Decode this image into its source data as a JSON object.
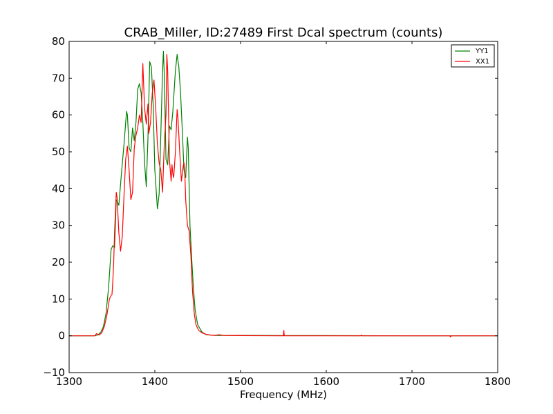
{
  "chart_data": {
    "type": "line",
    "title": "CRAB_Miller, ID:27489 First Dcal spectrum (counts)",
    "xlabel": "Frequency (MHz)",
    "ylabel": "",
    "xlim": [
      1300,
      1800
    ],
    "ylim": [
      -10,
      80
    ],
    "xticks": [
      1300,
      1400,
      1500,
      1600,
      1700,
      1800
    ],
    "yticks": [
      -10,
      0,
      10,
      20,
      30,
      40,
      50,
      60,
      70,
      80
    ],
    "legend_position": "top-right",
    "grid": false,
    "series": [
      {
        "name": "YY1",
        "color": "#008000",
        "points": [
          [
            1300,
            0
          ],
          [
            1320,
            0
          ],
          [
            1330,
            0
          ],
          [
            1334,
            0.3
          ],
          [
            1337,
            1.0
          ],
          [
            1340,
            2.5
          ],
          [
            1343,
            6.0
          ],
          [
            1346,
            13.0
          ],
          [
            1349,
            23.5
          ],
          [
            1351,
            24.5
          ],
          [
            1353,
            24.0
          ],
          [
            1355,
            37.0
          ],
          [
            1358,
            35.5
          ],
          [
            1361,
            44.0
          ],
          [
            1364,
            52.0
          ],
          [
            1367,
            61.0
          ],
          [
            1368,
            60.0
          ],
          [
            1370,
            51.0
          ],
          [
            1372,
            50.0
          ],
          [
            1374,
            56.5
          ],
          [
            1376,
            53.0
          ],
          [
            1378,
            58.0
          ],
          [
            1380,
            67.0
          ],
          [
            1382,
            68.5
          ],
          [
            1384,
            66.0
          ],
          [
            1386,
            58.0
          ],
          [
            1388,
            47.0
          ],
          [
            1390,
            40.5
          ],
          [
            1392,
            54.0
          ],
          [
            1394,
            74.5
          ],
          [
            1396,
            73.0
          ],
          [
            1398,
            63.0
          ],
          [
            1400,
            45.0
          ],
          [
            1403,
            34.5
          ],
          [
            1405,
            38.5
          ],
          [
            1407,
            55.0
          ],
          [
            1409,
            72.0
          ],
          [
            1410,
            77.3
          ],
          [
            1411,
            71.0
          ],
          [
            1413,
            48.0
          ],
          [
            1415,
            46.5
          ],
          [
            1417,
            57.0
          ],
          [
            1419,
            56.0
          ],
          [
            1421,
            61.0
          ],
          [
            1424,
            72.0
          ],
          [
            1426,
            76.5
          ],
          [
            1428,
            73.0
          ],
          [
            1430,
            66.0
          ],
          [
            1432,
            56.0
          ],
          [
            1434,
            45.0
          ],
          [
            1436,
            43.0
          ],
          [
            1438,
            54.0
          ],
          [
            1439,
            51.0
          ],
          [
            1441,
            30.0
          ],
          [
            1443,
            21.0
          ],
          [
            1445,
            13.0
          ],
          [
            1447,
            7.0
          ],
          [
            1450,
            3.0
          ],
          [
            1455,
            1.0
          ],
          [
            1460,
            0.3
          ],
          [
            1470,
            0.1
          ],
          [
            1480,
            0.1
          ],
          [
            1500,
            0.1
          ],
          [
            1550,
            0.05
          ],
          [
            1600,
            0.05
          ],
          [
            1700,
            0
          ],
          [
            1800,
            0
          ]
        ]
      },
      {
        "name": "XX1",
        "color": "#ff0000",
        "points": [
          [
            1300,
            0
          ],
          [
            1325,
            0
          ],
          [
            1330,
            0
          ],
          [
            1332,
            0.6
          ],
          [
            1335,
            0.2
          ],
          [
            1338,
            0.8
          ],
          [
            1341,
            2.5
          ],
          [
            1344,
            5.5
          ],
          [
            1347,
            10.0
          ],
          [
            1349,
            11.0
          ],
          [
            1350,
            11.2
          ],
          [
            1351,
            15.0
          ],
          [
            1352,
            20.0
          ],
          [
            1353,
            28.0
          ],
          [
            1355,
            39.0
          ],
          [
            1356,
            37.5
          ],
          [
            1358,
            28.0
          ],
          [
            1360,
            23.0
          ],
          [
            1362,
            27.0
          ],
          [
            1364,
            38.0
          ],
          [
            1366,
            48.0
          ],
          [
            1368,
            51.5
          ],
          [
            1370,
            45.0
          ],
          [
            1372,
            37.0
          ],
          [
            1374,
            39.0
          ],
          [
            1376,
            51.0
          ],
          [
            1378,
            54.5
          ],
          [
            1380,
            56.5
          ],
          [
            1382,
            60.0
          ],
          [
            1384,
            58.0
          ],
          [
            1386,
            74.0
          ],
          [
            1388,
            62.0
          ],
          [
            1390,
            57.5
          ],
          [
            1392,
            63.0
          ],
          [
            1393,
            55.0
          ],
          [
            1395,
            58.0
          ],
          [
            1397,
            66.0
          ],
          [
            1399,
            69.5
          ],
          [
            1401,
            62.0
          ],
          [
            1403,
            52.0
          ],
          [
            1405,
            47.0
          ],
          [
            1407,
            45.0
          ],
          [
            1409,
            39.0
          ],
          [
            1411,
            52.0
          ],
          [
            1413,
            60.0
          ],
          [
            1414,
            76.5
          ],
          [
            1415,
            72.0
          ],
          [
            1416,
            60.0
          ],
          [
            1417,
            48.0
          ],
          [
            1419,
            42.0
          ],
          [
            1420,
            46.5
          ],
          [
            1421,
            44.0
          ],
          [
            1422,
            43.0
          ],
          [
            1424,
            50.0
          ],
          [
            1426,
            61.5
          ],
          [
            1427,
            59.0
          ],
          [
            1429,
            50.0
          ],
          [
            1431,
            42.0
          ],
          [
            1433,
            46.0
          ],
          [
            1434,
            47.0
          ],
          [
            1435,
            44.0
          ],
          [
            1436,
            37.0
          ],
          [
            1438,
            30.0
          ],
          [
            1440,
            28.5
          ],
          [
            1442,
            22.0
          ],
          [
            1444,
            12.0
          ],
          [
            1446,
            6.0
          ],
          [
            1448,
            3.0
          ],
          [
            1451,
            1.5
          ],
          [
            1455,
            0.8
          ],
          [
            1460,
            0.4
          ],
          [
            1465,
            0.2
          ],
          [
            1470,
            0.1
          ],
          [
            1475,
            0.3
          ],
          [
            1480,
            0.1
          ],
          [
            1500,
            0.05
          ],
          [
            1549,
            0
          ],
          [
            1550,
            0
          ],
          [
            1550.5,
            1.5
          ],
          [
            1551,
            0
          ],
          [
            1600,
            0
          ],
          [
            1640,
            0
          ],
          [
            1641,
            0.2
          ],
          [
            1642,
            0
          ],
          [
            1700,
            0
          ],
          [
            1744,
            0
          ],
          [
            1745,
            -0.3
          ],
          [
            1746,
            0
          ],
          [
            1800,
            0
          ]
        ]
      }
    ]
  }
}
